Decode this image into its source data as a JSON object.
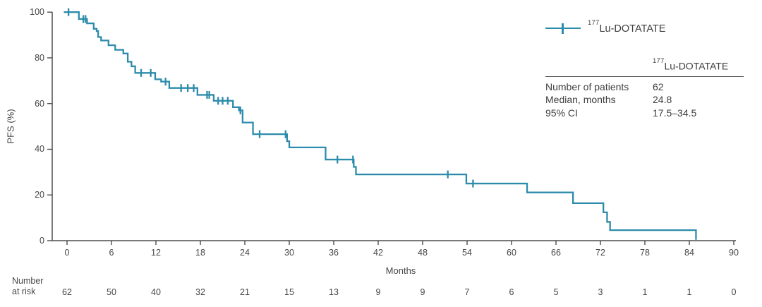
{
  "colors": {
    "curve": "#2d8cab",
    "axis": "#4d4d4d",
    "text": "#474747"
  },
  "y_axis": {
    "label": "PFS (%)",
    "ticks": [
      0,
      20,
      40,
      60,
      80,
      100
    ]
  },
  "x_axis": {
    "label": "Months",
    "ticks": [
      0,
      6,
      12,
      18,
      24,
      30,
      36,
      42,
      48,
      54,
      60,
      66,
      72,
      78,
      84,
      90
    ]
  },
  "legend": {
    "isotope": "177",
    "label": "Lu-DOTATATE"
  },
  "stats_table": {
    "header_isotope": "177",
    "header": "Lu-DOTATATE",
    "rows": [
      {
        "label": "Number of patients",
        "value": "62"
      },
      {
        "label": "Median, months",
        "value": "24.8"
      },
      {
        "label": "95% CI",
        "value": "17.5–34.5"
      }
    ]
  },
  "at_risk": {
    "label_line1": "Number",
    "label_line2": "at risk"
  },
  "chart_data": {
    "type": "line",
    "subtype": "kaplan-meier-step",
    "series_name": "177Lu-DOTATATE",
    "xlabel": "Months",
    "ylabel": "PFS (%)",
    "xlim": [
      0,
      90
    ],
    "ylim": [
      0,
      100
    ],
    "grid": false,
    "legend_position": "top-right",
    "median_months": 24.8,
    "ci_95": "17.5-34.5",
    "n_patients": 62,
    "steps": [
      [
        0,
        100
      ],
      [
        1.6,
        97.0
      ],
      [
        2.7,
        95.1
      ],
      [
        3.6,
        92.7
      ],
      [
        4.0,
        91.7
      ],
      [
        4.2,
        89.1
      ],
      [
        4.6,
        87.6
      ],
      [
        5.6,
        85.5
      ],
      [
        6.5,
        83.5
      ],
      [
        7.6,
        81.9
      ],
      [
        8.2,
        78.3
      ],
      [
        8.7,
        76.3
      ],
      [
        9.2,
        73.4
      ],
      [
        11.9,
        70.6
      ],
      [
        12.7,
        69.6
      ],
      [
        13.8,
        66.8
      ],
      [
        17.6,
        63.8
      ],
      [
        19.8,
        61.2
      ],
      [
        22.4,
        58.4
      ],
      [
        23.2,
        57.0
      ],
      [
        23.7,
        51.7
      ],
      [
        25.1,
        46.6
      ],
      [
        29.7,
        43.5
      ],
      [
        30.0,
        40.8
      ],
      [
        34.9,
        35.5
      ],
      [
        38.7,
        32.3
      ],
      [
        39.0,
        29.0
      ],
      [
        53.9,
        25.0
      ],
      [
        62.1,
        21.1
      ],
      [
        68.3,
        16.4
      ],
      [
        72.4,
        12.4
      ],
      [
        72.9,
        8.2
      ],
      [
        73.3,
        4.6
      ],
      [
        84.9,
        0.4
      ]
    ],
    "censor_marks": [
      [
        0.2,
        100
      ],
      [
        2.2,
        97.0
      ],
      [
        2.5,
        97.0
      ],
      [
        10.0,
        73.4
      ],
      [
        11.3,
        73.4
      ],
      [
        13.3,
        69.6
      ],
      [
        15.4,
        66.8
      ],
      [
        16.3,
        66.8
      ],
      [
        17.1,
        66.8
      ],
      [
        18.9,
        63.8
      ],
      [
        19.2,
        63.8
      ],
      [
        20.4,
        61.2
      ],
      [
        21.0,
        61.2
      ],
      [
        21.7,
        61.2
      ],
      [
        23.4,
        57.0
      ],
      [
        26.0,
        46.6
      ],
      [
        29.5,
        46.6
      ],
      [
        36.5,
        35.5
      ],
      [
        38.6,
        35.5
      ],
      [
        51.4,
        29.0
      ],
      [
        54.8,
        25.0
      ]
    ],
    "at_risk_times": [
      0,
      6,
      12,
      18,
      24,
      30,
      36,
      42,
      48,
      54,
      60,
      66,
      72,
      78,
      84,
      90
    ],
    "number_at_risk": [
      62,
      50,
      40,
      32,
      21,
      15,
      13,
      9,
      9,
      7,
      6,
      5,
      3,
      1,
      1,
      0
    ]
  }
}
